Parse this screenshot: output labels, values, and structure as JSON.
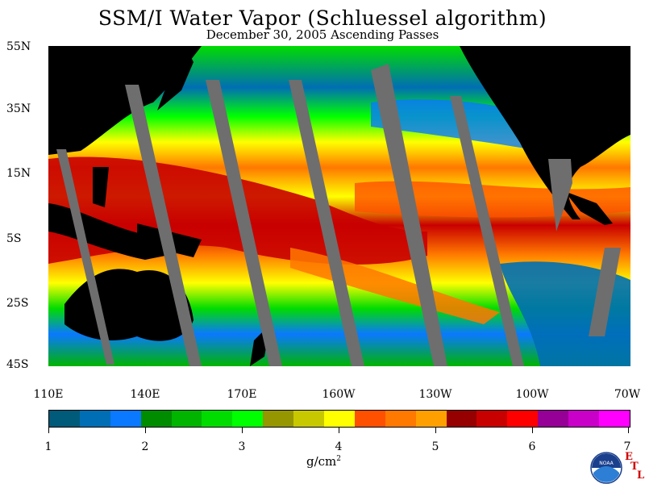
{
  "title": "SSM/I Water Vapor (Schluessel algorithm)",
  "subtitle": "December 30, 2005  Ascending Passes",
  "lat_labels": [
    "55N",
    "35N",
    "15N",
    "5S",
    "25S",
    "45S"
  ],
  "lon_labels": [
    "110E",
    "140E",
    "170E",
    "160W",
    "130W",
    "100W",
    "70W"
  ],
  "colorbar": {
    "ticks": [
      "1",
      "2",
      "3",
      "4",
      "5",
      "6",
      "7"
    ],
    "units": "g/cm",
    "units_exp": "2",
    "colors": [
      "#005a7a",
      "#006eb4",
      "#0a78ff",
      "#008c00",
      "#00b400",
      "#00dc00",
      "#00ff00",
      "#969600",
      "#c8c800",
      "#ffff00",
      "#ff5000",
      "#ff7800",
      "#ffa000",
      "#960000",
      "#c80000",
      "#ff0000",
      "#960096",
      "#c800c8",
      "#ff00ff"
    ]
  },
  "logo": {
    "text": "NOAA",
    "etl_e": "E",
    "etl_t": "T",
    "etl_l": "L"
  }
}
